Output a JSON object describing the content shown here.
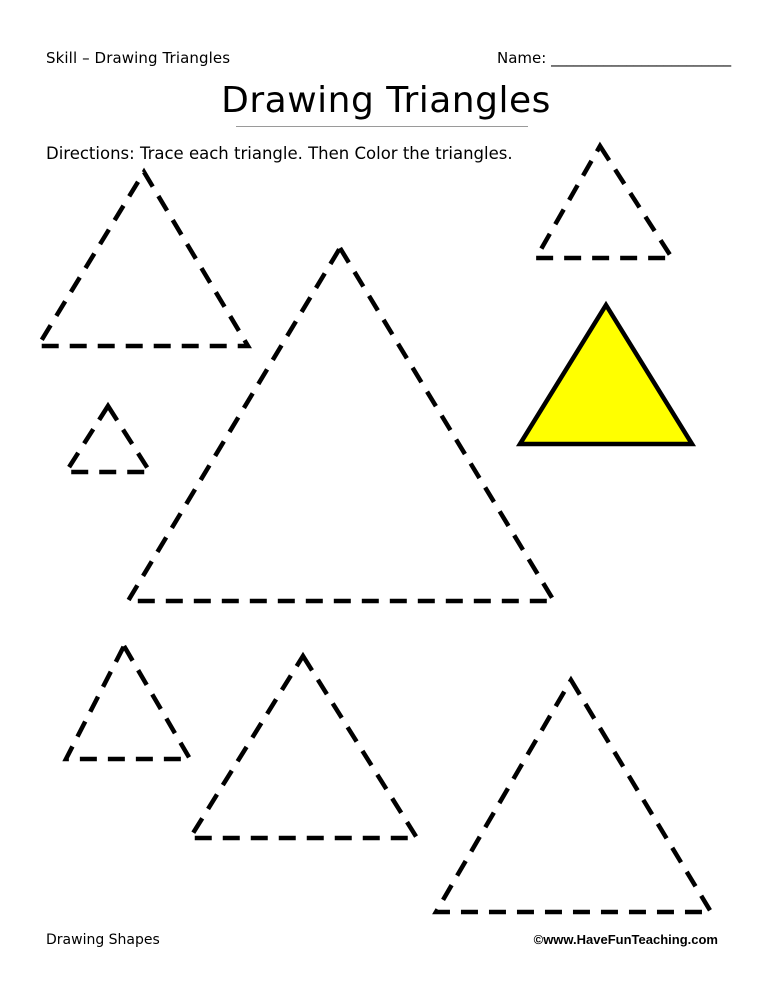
{
  "header": {
    "skill_label": "Skill – Drawing Triangles",
    "name_label": "Name:",
    "name_blank": "________________________"
  },
  "title": "Drawing Triangles",
  "directions": "Directions: Trace each triangle. Then Color the triangles.",
  "example_fill_color": "#ffff00",
  "footer": {
    "left": "Drawing Shapes",
    "right": "©www.HaveFunTeaching.com"
  }
}
